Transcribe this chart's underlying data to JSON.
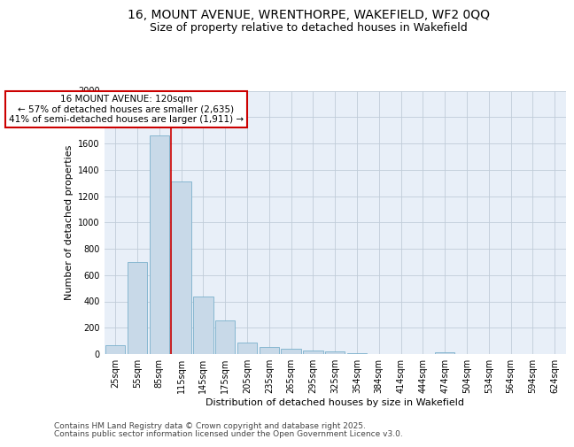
{
  "title_line1": "16, MOUNT AVENUE, WRENTHORPE, WAKEFIELD, WF2 0QQ",
  "title_line2": "Size of property relative to detached houses in Wakefield",
  "xlabel": "Distribution of detached houses by size in Wakefield",
  "ylabel": "Number of detached properties",
  "categories": [
    "25sqm",
    "55sqm",
    "85sqm",
    "115sqm",
    "145sqm",
    "175sqm",
    "205sqm",
    "235sqm",
    "265sqm",
    "295sqm",
    "325sqm",
    "354sqm",
    "384sqm",
    "414sqm",
    "444sqm",
    "474sqm",
    "504sqm",
    "534sqm",
    "564sqm",
    "594sqm",
    "624sqm"
  ],
  "values": [
    65,
    700,
    1660,
    1310,
    440,
    255,
    90,
    55,
    40,
    25,
    20,
    10,
    0,
    0,
    0,
    15,
    0,
    0,
    0,
    0,
    0
  ],
  "bar_color": "#c8d9e8",
  "bar_edge_color": "#7ab0cc",
  "vline_color": "#cc0000",
  "vline_xindex": 3,
  "annotation_text": "16 MOUNT AVENUE: 120sqm\n← 57% of detached houses are smaller (2,635)\n41% of semi-detached houses are larger (1,911) →",
  "annotation_box_color": "#ffffff",
  "annotation_box_edge": "#cc0000",
  "ylim": [
    0,
    2000
  ],
  "yticks": [
    0,
    200,
    400,
    600,
    800,
    1000,
    1200,
    1400,
    1600,
    1800,
    2000
  ],
  "grid_color": "#c0ccd8",
  "bg_color": "#e8eff8",
  "footer_line1": "Contains HM Land Registry data © Crown copyright and database right 2025.",
  "footer_line2": "Contains public sector information licensed under the Open Government Licence v3.0.",
  "title_fontsize": 10,
  "subtitle_fontsize": 9,
  "axis_label_fontsize": 8,
  "tick_fontsize": 7,
  "annotation_fontsize": 7.5,
  "footer_fontsize": 6.5
}
